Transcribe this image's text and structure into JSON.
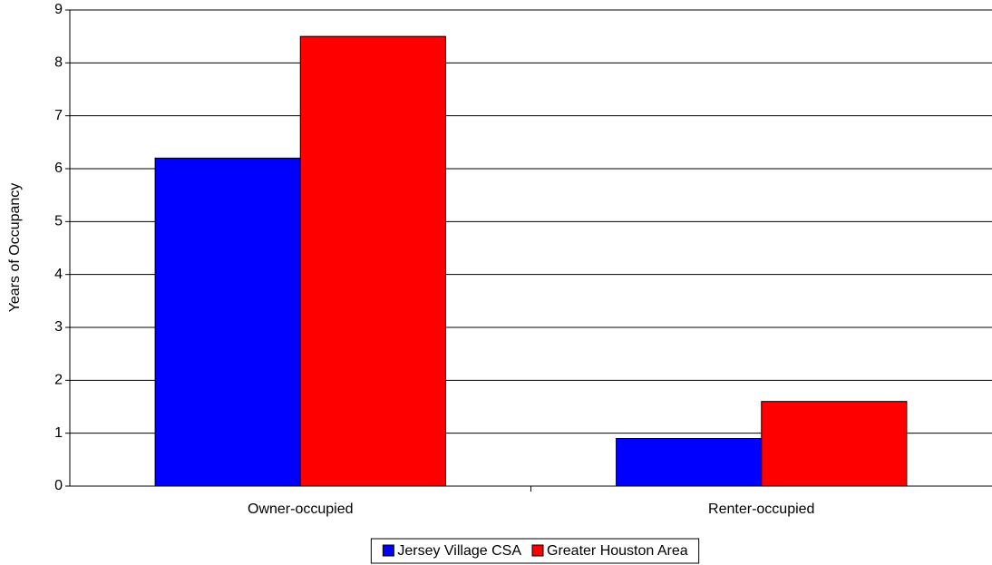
{
  "chart_data": {
    "type": "bar",
    "ylabel": "Years of Occupancy",
    "categories": [
      "Owner-occupied",
      "Renter-occupied"
    ],
    "series": [
      {
        "name": "Jersey Village CSA",
        "color": "#0000ff",
        "values": [
          6.2,
          0.9
        ]
      },
      {
        "name": "Greater Houston Area",
        "color": "#ff0000",
        "values": [
          8.5,
          1.6
        ]
      }
    ],
    "ylim": [
      0,
      9
    ],
    "yticks": [
      0,
      1,
      2,
      3,
      4,
      5,
      6,
      7,
      8,
      9
    ],
    "grid": true,
    "legend": "bottom"
  }
}
